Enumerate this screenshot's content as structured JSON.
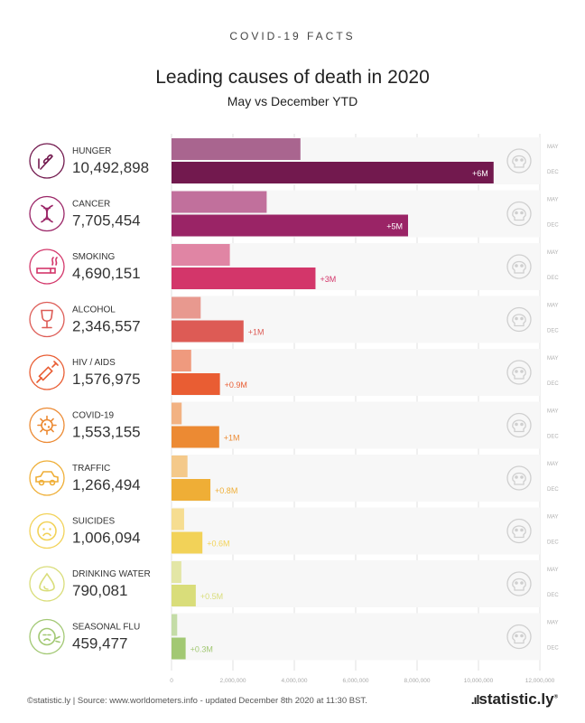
{
  "kicker": "COVID-19 FACTS",
  "footer": "©statistic.ly | Source: www.worldometers.info - updated December 8th 2020 at 11:30 BST.",
  "brand": "statistic.ly",
  "chart_data": {
    "type": "bar",
    "title": "Leading causes of death in 2020",
    "subtitle": "May vs December YTD",
    "series_labels": [
      "MAY",
      "DEC"
    ],
    "xlim": [
      0,
      12000000
    ],
    "xticks": [
      0,
      2000000,
      4000000,
      6000000,
      8000000,
      10000000,
      12000000
    ],
    "xtick_labels": [
      "0",
      "2,000,000",
      "4,000,000",
      "6,000,000",
      "8,000,000",
      "10,000,000",
      "12,000,000"
    ],
    "categories": [
      {
        "name": "HUNGER",
        "total": "10,492,898",
        "may": 4200000,
        "dec": 10492898,
        "diff": "+6M",
        "icon": "wheat-icon",
        "may_color": "#a9658f",
        "dec_color": "#72194e"
      },
      {
        "name": "CANCER",
        "total": "7,705,454",
        "may": 3100000,
        "dec": 7705454,
        "diff": "+5M",
        "icon": "dna-icon",
        "may_color": "#c1709c",
        "dec_color": "#9a2466"
      },
      {
        "name": "SMOKING",
        "total": "4,690,151",
        "may": 1900000,
        "dec": 4690151,
        "diff": "+3M",
        "icon": "cigarette-icon",
        "may_color": "#e085a4",
        "dec_color": "#d3366a"
      },
      {
        "name": "ALCOHOL",
        "total": "2,346,557",
        "may": 950000,
        "dec": 2346557,
        "diff": "+1M",
        "icon": "wine-glass-icon",
        "may_color": "#e8998f",
        "dec_color": "#dd5b55"
      },
      {
        "name": "HIV / AIDS",
        "total": "1,576,975",
        "may": 640000,
        "dec": 1576975,
        "diff": "+0.9M",
        "icon": "syringe-icon",
        "may_color": "#ef9a7e",
        "dec_color": "#e95d33"
      },
      {
        "name": "COVID-19",
        "total": "1,553,155",
        "may": 330000,
        "dec": 1553155,
        "diff": "+1M",
        "icon": "virus-icon",
        "may_color": "#f2b283",
        "dec_color": "#ec8a33"
      },
      {
        "name": "TRAFFIC",
        "total": "1,266,494",
        "may": 520000,
        "dec": 1266494,
        "diff": "+0.8M",
        "icon": "car-icon",
        "may_color": "#f4c98a",
        "dec_color": "#efae36"
      },
      {
        "name": "SUICIDES",
        "total": "1,006,094",
        "may": 410000,
        "dec": 1006094,
        "diff": "+0.6M",
        "icon": "sad-face-icon",
        "may_color": "#f6dd91",
        "dec_color": "#f2d258"
      },
      {
        "name": "DRINKING WATER",
        "total": "790,081",
        "may": 320000,
        "dec": 790081,
        "diff": "+0.5M",
        "icon": "water-drop-icon",
        "may_color": "#e3e6a6",
        "dec_color": "#d9dd7a"
      },
      {
        "name": "SEASONAL FLU",
        "total": "459,477",
        "may": 185000,
        "dec": 459477,
        "diff": "+0.3M",
        "icon": "sneeze-icon",
        "may_color": "#c4dca7",
        "dec_color": "#a2c873"
      }
    ]
  }
}
